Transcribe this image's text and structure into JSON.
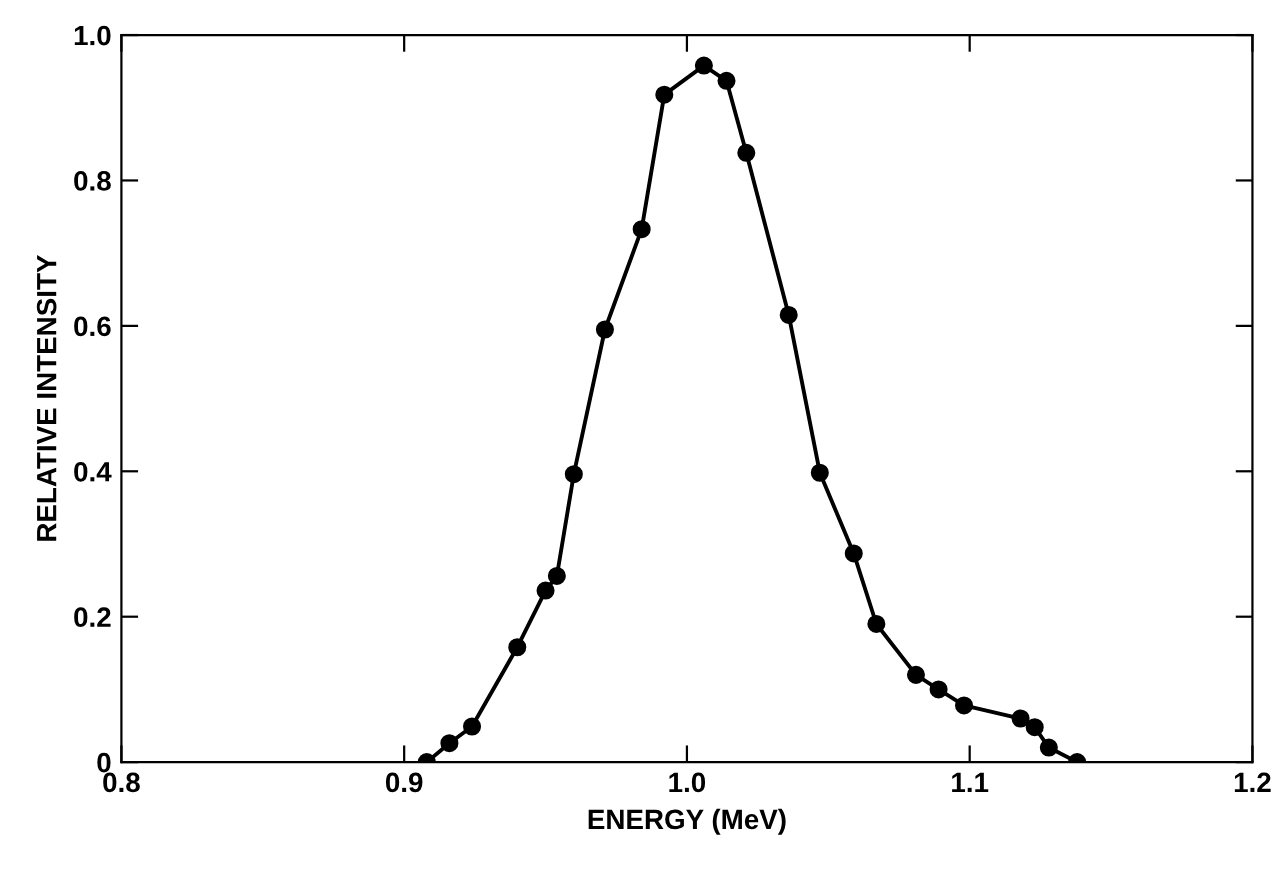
{
  "chart_data": {
    "type": "line",
    "xlabel": "ENERGY (MeV)",
    "ylabel": "RELATIVE INTENSITY",
    "x": [
      0.908,
      0.916,
      0.924,
      0.94,
      0.95,
      0.954,
      0.96,
      0.971,
      0.984,
      0.992,
      1.006,
      1.014,
      1.021,
      1.036,
      1.047,
      1.059,
      1.067,
      1.081,
      1.089,
      1.098,
      1.118,
      1.123,
      1.128,
      1.138
    ],
    "series": [
      {
        "color": "#000000",
        "values": [
          0,
          0.026,
          0.049,
          0.158,
          0.236,
          0.256,
          0.396,
          0.595,
          0.733,
          0.918,
          0.958,
          0.937,
          0.838,
          0.615,
          0.398,
          0.287,
          0.19,
          0.12,
          0.1,
          0.078,
          0.06,
          0.048,
          0.02,
          0
        ]
      }
    ],
    "xlim": [
      0.8,
      1.2
    ],
    "xticks": [
      0.8,
      0.9,
      {
        "value": 1,
        "label": "1.0"
      },
      1.1,
      1.2
    ],
    "ylim": [
      0,
      1.0
    ],
    "yticks": [
      0,
      0.2,
      0.4,
      0.6,
      0.8,
      {
        "value": 1,
        "label": "1.0"
      }
    ],
    "marker": "circle",
    "line_style": "solid",
    "grid": false,
    "legend": false
  }
}
